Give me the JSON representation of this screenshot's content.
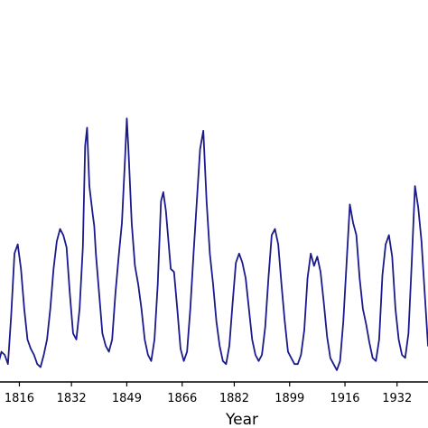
{
  "chart_data": {
    "type": "line",
    "xlabel": "Year",
    "ylabel": "",
    "title": "",
    "xlim": [
      1809.5,
      1941.5
    ],
    "ylim": [
      0,
      1
    ],
    "x_ticks": [
      1816,
      1832,
      1849,
      1866,
      1882,
      1899,
      1916,
      1932
    ],
    "grid": false,
    "legend": "none",
    "series": [
      {
        "color": "#1a1a8c",
        "x": [
          1809.5,
          1810.5,
          1811.5,
          1812.5,
          1813.5,
          1814.5,
          1815.5,
          1816.5,
          1817.5,
          1818.5,
          1819.5,
          1820.5,
          1821.5,
          1822.5,
          1823.5,
          1824.5,
          1825.5,
          1826.5,
          1827.5,
          1828.5,
          1829.5,
          1830.5,
          1831.5,
          1832.5,
          1833.5,
          1834.5,
          1835.5,
          1836.2,
          1836.8,
          1837.5,
          1838.5,
          1839.0,
          1839.5,
          1840.5,
          1841.5,
          1842.5,
          1843.5,
          1844.5,
          1845.5,
          1846.5,
          1847.5,
          1848.5,
          1849.0,
          1849.5,
          1850.5,
          1851.5,
          1852.5,
          1853.5,
          1854.5,
          1855.5,
          1856.5,
          1857.5,
          1858.5,
          1859.5,
          1860.2,
          1861.0,
          1862.5,
          1863.5,
          1864.5,
          1865.5,
          1866.5,
          1867.5,
          1868.5,
          1869.5,
          1870.5,
          1871.5,
          1872.5,
          1873.5,
          1874.5,
          1875.5,
          1876.5,
          1877.5,
          1878.5,
          1879.5,
          1880.5,
          1881.5,
          1882.5,
          1883.5,
          1884.5,
          1885.5,
          1886.5,
          1887.5,
          1888.5,
          1889.5,
          1890.5,
          1891.5,
          1892.5,
          1893.5,
          1894.5,
          1895.5,
          1896.5,
          1897.5,
          1898.5,
          1899.5,
          1900.5,
          1901.5,
          1902.5,
          1903.5,
          1904.5,
          1905.5,
          1906.5,
          1907.5,
          1908.5,
          1909.5,
          1910.5,
          1911.5,
          1912.5,
          1913.5,
          1914.5,
          1915.5,
          1916.5,
          1917.5,
          1918.5,
          1919.5,
          1920.5,
          1921.5,
          1922.5,
          1923.5,
          1924.5,
          1925.5,
          1926.5,
          1927.5,
          1928.5,
          1929.5,
          1930.5,
          1931.5,
          1932.5,
          1933.5,
          1934.5,
          1935.5,
          1936.5,
          1937.5,
          1938.5,
          1939.5,
          1940.5,
          1941.5
        ],
        "y": [
          0.02,
          0.06,
          0.05,
          0.02,
          0.18,
          0.38,
          0.41,
          0.33,
          0.2,
          0.1,
          0.07,
          0.05,
          0.02,
          0.01,
          0.05,
          0.1,
          0.2,
          0.33,
          0.42,
          0.46,
          0.44,
          0.4,
          0.25,
          0.12,
          0.1,
          0.2,
          0.4,
          0.73,
          0.79,
          0.6,
          0.51,
          0.47,
          0.38,
          0.25,
          0.12,
          0.08,
          0.06,
          0.1,
          0.25,
          0.37,
          0.48,
          0.7,
          0.82,
          0.72,
          0.48,
          0.34,
          0.28,
          0.2,
          0.1,
          0.05,
          0.03,
          0.1,
          0.28,
          0.55,
          0.58,
          0.52,
          0.33,
          0.32,
          0.2,
          0.07,
          0.03,
          0.06,
          0.2,
          0.38,
          0.55,
          0.72,
          0.78,
          0.55,
          0.38,
          0.28,
          0.16,
          0.08,
          0.03,
          0.02,
          0.08,
          0.22,
          0.35,
          0.38,
          0.35,
          0.3,
          0.2,
          0.1,
          0.05,
          0.03,
          0.05,
          0.14,
          0.3,
          0.44,
          0.46,
          0.41,
          0.28,
          0.16,
          0.06,
          0.04,
          0.02,
          0.02,
          0.05,
          0.13,
          0.3,
          0.38,
          0.34,
          0.37,
          0.32,
          0.22,
          0.11,
          0.04,
          0.02,
          0.0,
          0.03,
          0.16,
          0.35,
          0.54,
          0.48,
          0.44,
          0.3,
          0.2,
          0.15,
          0.09,
          0.04,
          0.03,
          0.1,
          0.31,
          0.41,
          0.44,
          0.37,
          0.2,
          0.1,
          0.05,
          0.04,
          0.12,
          0.35,
          0.6,
          0.53,
          0.42,
          0.25,
          0.08
        ]
      }
    ]
  }
}
